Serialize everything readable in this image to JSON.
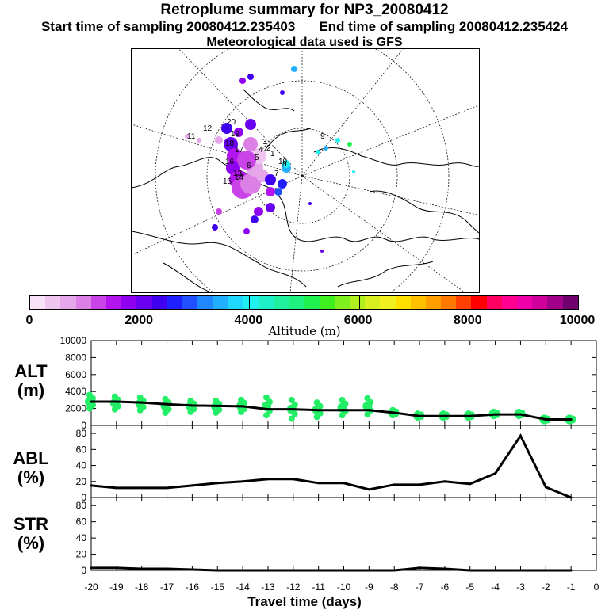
{
  "header": {
    "title": "Retroplume summary for NP3_20080412",
    "start_time": "Start time of sampling 20080412.235403",
    "end_time": "End time of sampling 20080412.235424",
    "met_data": "Meteorological data used is GFS"
  },
  "map": {
    "projection": "polar stereographic (north)",
    "labels": [
      "20",
      "19",
      "18",
      "17",
      "16",
      "15",
      "14",
      "13",
      "12",
      "11",
      "10",
      "9",
      "8",
      "7",
      "6",
      "5",
      "4",
      "3",
      "2",
      "1"
    ]
  },
  "colorbar": {
    "label": "Altitude (m)",
    "ticks": [
      "0",
      "2000",
      "4000",
      "6000",
      "8000",
      "10000"
    ],
    "colors": [
      "#f7e2f7",
      "#efc6ef",
      "#e6a6ea",
      "#dc80e6",
      "#c844e6",
      "#b414ee",
      "#9000f0",
      "#6a00f2",
      "#4000f0",
      "#2020ff",
      "#2050ff",
      "#2088ff",
      "#20b0ff",
      "#20d8ff",
      "#20f0f0",
      "#20f0c8",
      "#20f0a0",
      "#20f080",
      "#20f050",
      "#40f020",
      "#80f020",
      "#b0f020",
      "#d8f020",
      "#f0f020",
      "#ffe000",
      "#ffc000",
      "#ffa000",
      "#ff7800",
      "#ff4000",
      "#ff0000",
      "#ff0060",
      "#ff0090",
      "#f000a8",
      "#d0009c",
      "#a0008a",
      "#70006e"
    ]
  },
  "chart_data": [
    {
      "type": "line",
      "panel": "ALT",
      "ylabel": "ALT\n(m)",
      "ylabel_line1": "ALT",
      "ylabel_line2": "(m)",
      "ylim": [
        0,
        10000
      ],
      "yticks": [
        "0",
        "2000",
        "4000",
        "6000",
        "8000",
        "10000"
      ],
      "xlim": [
        -20,
        0
      ],
      "x": [
        -20,
        -19,
        -18,
        -17,
        -16,
        -15,
        -14,
        -13,
        -12,
        -11,
        -10,
        -9,
        -8,
        -7,
        -6,
        -5,
        -4,
        -3,
        -2,
        -1
      ],
      "values": [
        2800,
        2800,
        2700,
        2500,
        2350,
        2300,
        2250,
        1900,
        1900,
        1800,
        1800,
        1800,
        1500,
        1100,
        1100,
        1100,
        1300,
        1300,
        700,
        700
      ],
      "spread_min": [
        2000,
        1900,
        1800,
        1500,
        1600,
        1500,
        1600,
        1200,
        800,
        1000,
        1200,
        1300,
        1200,
        900,
        900,
        900,
        1100,
        1100,
        500,
        500
      ],
      "spread_max": [
        3600,
        3400,
        3300,
        3100,
        2900,
        2900,
        3000,
        3300,
        3000,
        2700,
        3000,
        3200,
        1800,
        1400,
        1400,
        1400,
        1600,
        1600,
        900,
        900
      ],
      "spread_color": "#22ee66"
    },
    {
      "type": "line",
      "panel": "ABL",
      "ylabel_line1": "ABL",
      "ylabel_line2": "(%)",
      "ylim": [
        0,
        90
      ],
      "yticks": [
        "0",
        "20",
        "40",
        "60",
        "80"
      ],
      "xlim": [
        -20,
        0
      ],
      "x": [
        -20,
        -19,
        -18,
        -17,
        -16,
        -15,
        -14,
        -13,
        -12,
        -11,
        -10,
        -9,
        -8,
        -7,
        -6,
        -5,
        -4,
        -3,
        -2,
        -1
      ],
      "values": [
        15,
        12,
        12,
        12,
        15,
        18,
        20,
        23,
        23,
        18,
        18,
        10,
        16,
        16,
        20,
        17,
        30,
        77,
        13,
        0
      ]
    },
    {
      "type": "line",
      "panel": "STR",
      "ylabel_line1": "STR",
      "ylabel_line2": "(%)",
      "ylim": [
        0,
        90
      ],
      "yticks": [
        "0",
        "20",
        "40",
        "60",
        "80"
      ],
      "xlim": [
        -20,
        0
      ],
      "x": [
        -20,
        -19,
        -18,
        -17,
        -16,
        -15,
        -14,
        -13,
        -12,
        -11,
        -10,
        -9,
        -8,
        -7,
        -6,
        -5,
        -4,
        -3,
        -2,
        -1
      ],
      "values": [
        3,
        3,
        2,
        2,
        1,
        0,
        0,
        0,
        0,
        0,
        0,
        0,
        0,
        3,
        2,
        0,
        0,
        0,
        0,
        0
      ]
    }
  ],
  "xaxis": {
    "ticks": [
      "-20",
      "-19",
      "-18",
      "-17",
      "-16",
      "-15",
      "-14",
      "-13",
      "-12",
      "-11",
      "-10",
      "-9",
      "-8",
      "-7",
      "-6",
      "-5",
      "-4",
      "-3",
      "-2",
      "-1",
      "0"
    ],
    "label": "Travel time (days)"
  }
}
